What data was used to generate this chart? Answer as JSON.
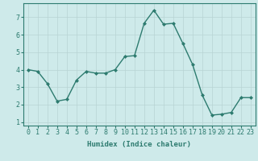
{
  "x": [
    0,
    1,
    2,
    3,
    4,
    5,
    6,
    7,
    8,
    9,
    10,
    11,
    12,
    13,
    14,
    15,
    16,
    17,
    18,
    19,
    20,
    21,
    22,
    23
  ],
  "y": [
    4.0,
    3.9,
    3.2,
    2.2,
    2.3,
    3.4,
    3.9,
    3.8,
    3.8,
    4.0,
    4.75,
    4.8,
    6.65,
    7.4,
    6.6,
    6.65,
    5.5,
    4.3,
    2.55,
    1.4,
    1.45,
    1.55,
    2.4,
    2.4
  ],
  "line_color": "#2d7b6f",
  "marker": "D",
  "markersize": 2.0,
  "linewidth": 1.0,
  "bg_color": "#ceeaea",
  "grid_color": "#b8d4d4",
  "xlabel": "Humidex (Indice chaleur)",
  "xlabel_fontsize": 6.5,
  "tick_fontsize": 6,
  "xlim": [
    -0.5,
    23.5
  ],
  "ylim": [
    0.8,
    7.8
  ],
  "yticks": [
    1,
    2,
    3,
    4,
    5,
    6,
    7
  ],
  "xticks": [
    0,
    1,
    2,
    3,
    4,
    5,
    6,
    7,
    8,
    9,
    10,
    11,
    12,
    13,
    14,
    15,
    16,
    17,
    18,
    19,
    20,
    21,
    22,
    23
  ]
}
